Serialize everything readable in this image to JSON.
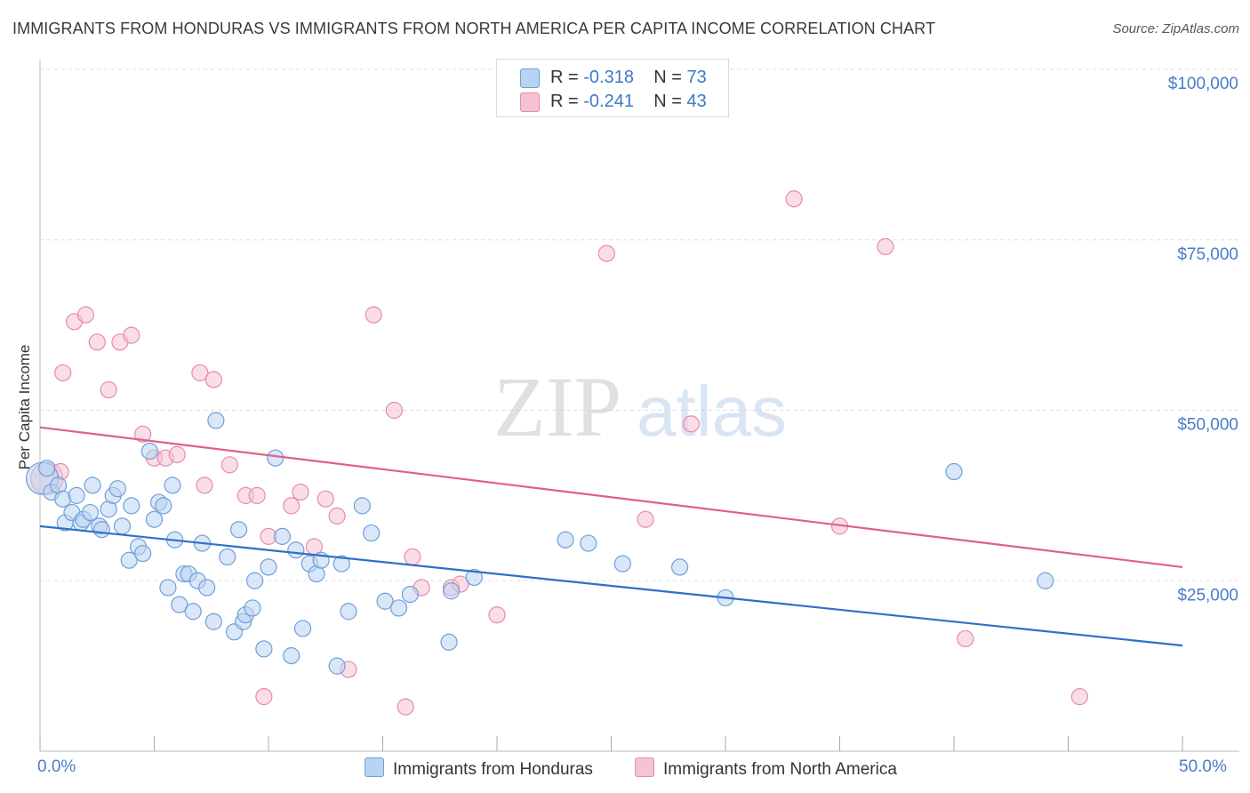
{
  "header": {
    "title": "IMMIGRANTS FROM HONDURAS VS IMMIGRANTS FROM NORTH AMERICA PER CAPITA INCOME CORRELATION CHART",
    "source": "Source: ZipAtlas.com"
  },
  "watermark": {
    "zip": "ZIP",
    "atlas": "atlas"
  },
  "legend_top": {
    "rows": [
      {
        "r_label": "R = ",
        "r_value": "-0.318",
        "n_label": "N = ",
        "n_value": "73"
      },
      {
        "r_label": "R = ",
        "r_value": "-0.241",
        "n_label": "N = ",
        "n_value": "43"
      }
    ]
  },
  "colors": {
    "blue_fill": "#b9d3f3",
    "blue_stroke": "#6f9fd8",
    "blue_line": "#2f6fc9",
    "pink_fill": "#f6c3d3",
    "pink_stroke": "#e88aa8",
    "pink_line": "#e0608c",
    "axis_text": "#4a7cc7",
    "grid": "#dddddd"
  },
  "chart_data": {
    "type": "scatter",
    "title": "IMMIGRANTS FROM HONDURAS VS IMMIGRANTS FROM NORTH AMERICA PER CAPITA INCOME CORRELATION CHART",
    "xlabel": "",
    "ylabel": "Per Capita Income",
    "xlim": [
      0,
      50
    ],
    "ylim": [
      0,
      100000
    ],
    "x_tick_labels": [
      "0.0%",
      "50.0%"
    ],
    "y_ticks": [
      25000,
      50000,
      75000,
      100000
    ],
    "y_tick_labels": [
      "$25,000",
      "$50,000",
      "$75,000",
      "$100,000"
    ],
    "grid": true,
    "legend_position": "bottom",
    "series": [
      {
        "name": "Immigrants from Honduras",
        "color": "#b9d3f3",
        "trend": {
          "x": [
            0,
            50
          ],
          "y": [
            33000,
            15500
          ]
        },
        "points": [
          {
            "x": 0.1,
            "y": 40000,
            "r": 18
          },
          {
            "x": 0.5,
            "y": 38000
          },
          {
            "x": 0.8,
            "y": 39000
          },
          {
            "x": 1.0,
            "y": 37000
          },
          {
            "x": 1.1,
            "y": 33500
          },
          {
            "x": 1.4,
            "y": 35000
          },
          {
            "x": 1.6,
            "y": 37500
          },
          {
            "x": 1.8,
            "y": 33500
          },
          {
            "x": 1.9,
            "y": 34000
          },
          {
            "x": 2.2,
            "y": 35000
          },
          {
            "x": 2.3,
            "y": 39000
          },
          {
            "x": 2.6,
            "y": 33000
          },
          {
            "x": 2.7,
            "y": 32500
          },
          {
            "x": 3.0,
            "y": 35500
          },
          {
            "x": 3.2,
            "y": 37500
          },
          {
            "x": 3.4,
            "y": 38500
          },
          {
            "x": 3.6,
            "y": 33000
          },
          {
            "x": 3.9,
            "y": 28000
          },
          {
            "x": 4.0,
            "y": 36000
          },
          {
            "x": 4.3,
            "y": 30000
          },
          {
            "x": 4.5,
            "y": 29000
          },
          {
            "x": 4.8,
            "y": 44000
          },
          {
            "x": 5.0,
            "y": 34000
          },
          {
            "x": 5.2,
            "y": 36500
          },
          {
            "x": 5.4,
            "y": 36000
          },
          {
            "x": 5.6,
            "y": 24000
          },
          {
            "x": 5.8,
            "y": 39000
          },
          {
            "x": 5.9,
            "y": 31000
          },
          {
            "x": 6.1,
            "y": 21500
          },
          {
            "x": 6.3,
            "y": 26000
          },
          {
            "x": 6.5,
            "y": 26000
          },
          {
            "x": 6.7,
            "y": 20500
          },
          {
            "x": 6.9,
            "y": 25000
          },
          {
            "x": 7.1,
            "y": 30500
          },
          {
            "x": 7.3,
            "y": 24000
          },
          {
            "x": 7.6,
            "y": 19000
          },
          {
            "x": 7.7,
            "y": 48500
          },
          {
            "x": 8.2,
            "y": 28500
          },
          {
            "x": 8.5,
            "y": 17500
          },
          {
            "x": 8.7,
            "y": 32500
          },
          {
            "x": 8.9,
            "y": 19000
          },
          {
            "x": 9.0,
            "y": 20000
          },
          {
            "x": 9.3,
            "y": 21000
          },
          {
            "x": 9.4,
            "y": 25000
          },
          {
            "x": 9.8,
            "y": 15000
          },
          {
            "x": 10.0,
            "y": 27000
          },
          {
            "x": 10.3,
            "y": 43000
          },
          {
            "x": 10.6,
            "y": 31500
          },
          {
            "x": 11.0,
            "y": 14000
          },
          {
            "x": 11.2,
            "y": 29500
          },
          {
            "x": 11.5,
            "y": 18000
          },
          {
            "x": 11.8,
            "y": 27500
          },
          {
            "x": 12.1,
            "y": 26000
          },
          {
            "x": 12.3,
            "y": 28000
          },
          {
            "x": 13.0,
            "y": 12500
          },
          {
            "x": 13.2,
            "y": 27500
          },
          {
            "x": 13.5,
            "y": 20500
          },
          {
            "x": 14.1,
            "y": 36000
          },
          {
            "x": 14.5,
            "y": 32000
          },
          {
            "x": 15.1,
            "y": 22000
          },
          {
            "x": 15.7,
            "y": 21000
          },
          {
            "x": 16.2,
            "y": 23000
          },
          {
            "x": 17.9,
            "y": 16000
          },
          {
            "x": 18.0,
            "y": 23500
          },
          {
            "x": 19.0,
            "y": 25500
          },
          {
            "x": 23.0,
            "y": 31000
          },
          {
            "x": 24.0,
            "y": 30500
          },
          {
            "x": 25.5,
            "y": 27500
          },
          {
            "x": 28.0,
            "y": 27000
          },
          {
            "x": 30.0,
            "y": 22500
          },
          {
            "x": 40.0,
            "y": 41000
          },
          {
            "x": 44.0,
            "y": 25000
          },
          {
            "x": 0.3,
            "y": 41500
          }
        ]
      },
      {
        "name": "Immigrants from North America",
        "color": "#f6c3d3",
        "trend": {
          "x": [
            0,
            50
          ],
          "y": [
            47500,
            27000
          ]
        },
        "points": [
          {
            "x": 0.3,
            "y": 40000,
            "r": 18
          },
          {
            "x": 1.0,
            "y": 55500
          },
          {
            "x": 1.5,
            "y": 63000
          },
          {
            "x": 2.0,
            "y": 64000
          },
          {
            "x": 2.5,
            "y": 60000
          },
          {
            "x": 3.0,
            "y": 53000
          },
          {
            "x": 3.5,
            "y": 60000
          },
          {
            "x": 4.0,
            "y": 61000
          },
          {
            "x": 4.5,
            "y": 46500
          },
          {
            "x": 5.0,
            "y": 43000
          },
          {
            "x": 5.5,
            "y": 43000
          },
          {
            "x": 6.0,
            "y": 43500
          },
          {
            "x": 7.0,
            "y": 55500
          },
          {
            "x": 7.2,
            "y": 39000
          },
          {
            "x": 7.6,
            "y": 54500
          },
          {
            "x": 8.3,
            "y": 42000
          },
          {
            "x": 9.0,
            "y": 37500
          },
          {
            "x": 9.5,
            "y": 37500
          },
          {
            "x": 9.8,
            "y": 8000
          },
          {
            "x": 10.0,
            "y": 31500
          },
          {
            "x": 11.0,
            "y": 36000
          },
          {
            "x": 11.4,
            "y": 38000
          },
          {
            "x": 12.0,
            "y": 30000
          },
          {
            "x": 12.5,
            "y": 37000
          },
          {
            "x": 13.0,
            "y": 34500
          },
          {
            "x": 13.5,
            "y": 12000
          },
          {
            "x": 14.6,
            "y": 64000
          },
          {
            "x": 15.5,
            "y": 50000
          },
          {
            "x": 16.0,
            "y": 6500
          },
          {
            "x": 16.3,
            "y": 28500
          },
          {
            "x": 16.7,
            "y": 24000
          },
          {
            "x": 18.0,
            "y": 24000
          },
          {
            "x": 18.4,
            "y": 24500
          },
          {
            "x": 20.0,
            "y": 20000
          },
          {
            "x": 24.8,
            "y": 73000
          },
          {
            "x": 26.5,
            "y": 34000
          },
          {
            "x": 28.5,
            "y": 48000
          },
          {
            "x": 33.0,
            "y": 81000
          },
          {
            "x": 35.0,
            "y": 33000
          },
          {
            "x": 37.0,
            "y": 74000
          },
          {
            "x": 40.5,
            "y": 16500
          },
          {
            "x": 45.5,
            "y": 8000
          },
          {
            "x": 0.9,
            "y": 41000
          }
        ]
      }
    ]
  },
  "axis": {
    "x_min_label": "0.0%",
    "x_max_label": "50.0%",
    "y_title": "Per Capita Income"
  },
  "legend_bottom": {
    "items": [
      {
        "label": "Immigrants from Honduras"
      },
      {
        "label": "Immigrants from North America"
      }
    ]
  }
}
